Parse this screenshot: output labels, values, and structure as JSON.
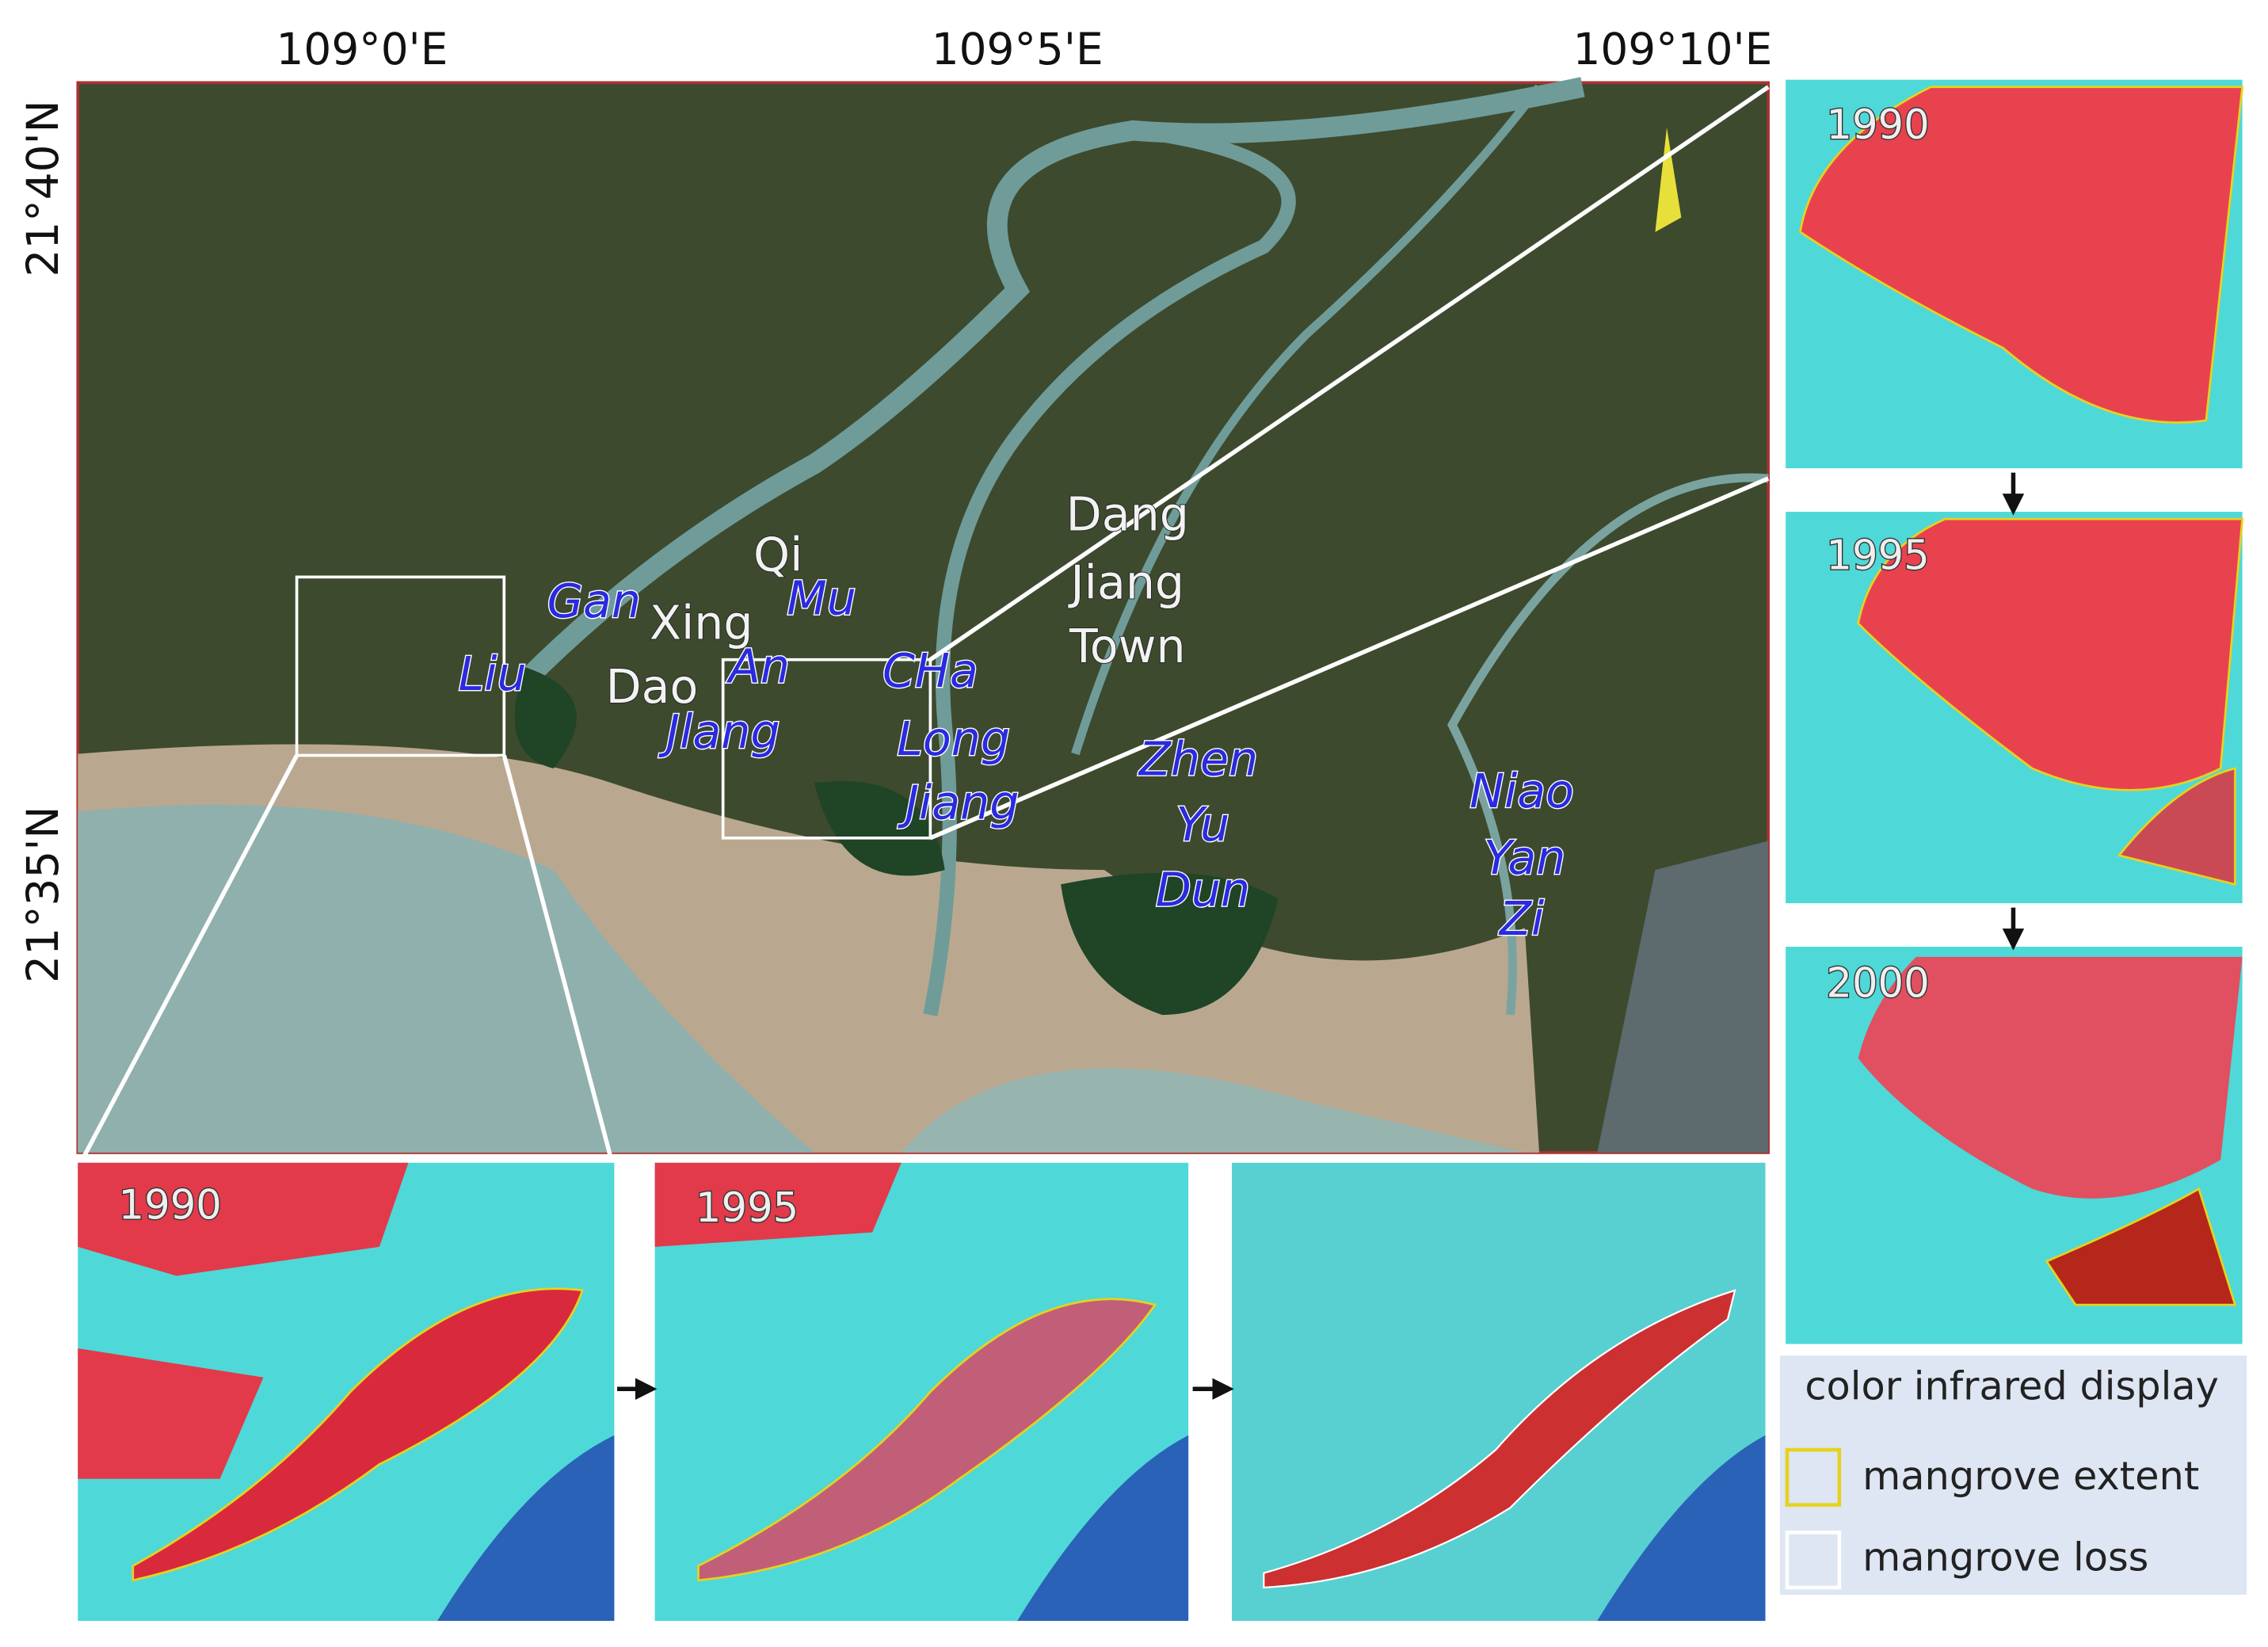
{
  "axes": {
    "longitude": [
      "109°0'E",
      "109°5'E",
      "109°10'E"
    ],
    "latitude": [
      "21°40'N",
      "21°35'N"
    ]
  },
  "white_labels": [
    "Qi",
    "Xing",
    "Dao",
    "Dang",
    "Jiang",
    "Town"
  ],
  "blue_labels": [
    "Gan",
    "Mu",
    "Liu",
    "An",
    "Jlang",
    "CHa",
    "Long",
    "Jiang",
    "Zhen",
    "Yu",
    "Dun",
    "Niao",
    "Yan",
    "Zi"
  ],
  "right_panels": [
    "1990",
    "1995",
    "2000"
  ],
  "bottom_panels": [
    "1990",
    "1995"
  ],
  "legend": {
    "title": "color infrared display",
    "items": [
      "mangrove extent",
      "mangrove loss"
    ]
  }
}
